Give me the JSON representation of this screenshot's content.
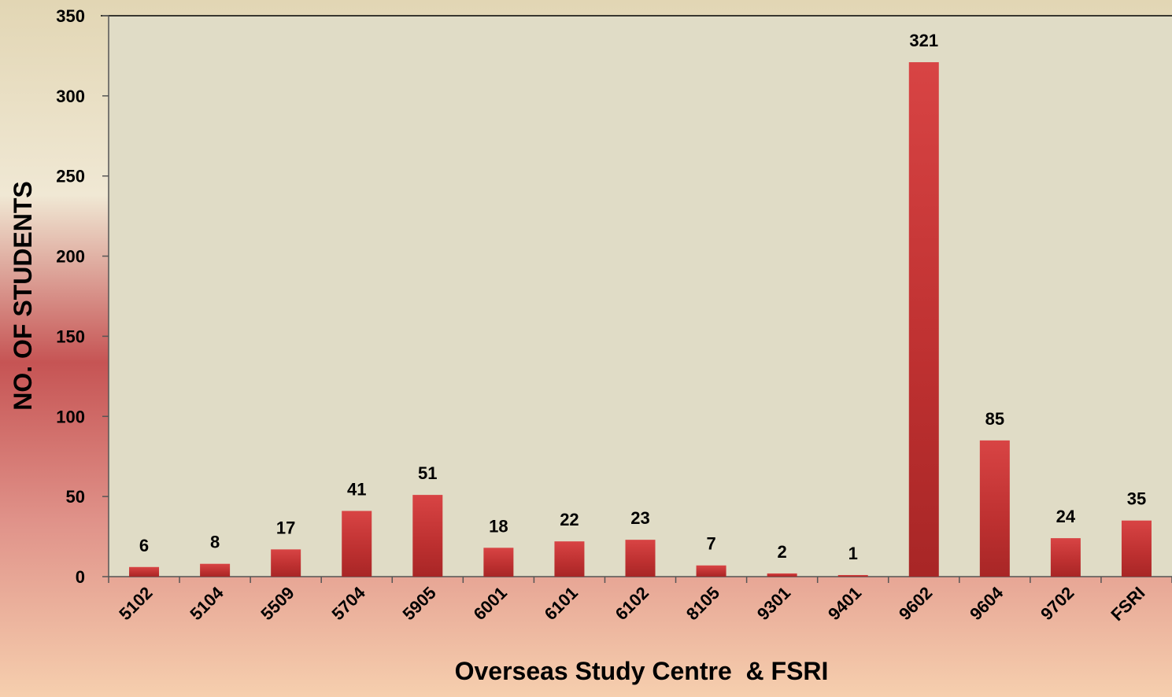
{
  "chart_data": {
    "type": "bar",
    "x_label": "Overseas Study Centre  & FSRI",
    "y_label": "NO. OF STUDENTS",
    "categories": [
      "5102",
      "5104",
      "5509",
      "5704",
      "5905",
      "6001",
      "6101",
      "6102",
      "8105",
      "9301",
      "9401",
      "9602",
      "9604",
      "9702",
      "FSRI"
    ],
    "values": [
      6,
      8,
      17,
      41,
      51,
      18,
      22,
      23,
      7,
      2,
      1,
      321,
      85,
      24,
      35
    ],
    "color": "#c83434",
    "ylim": [
      0,
      350
    ],
    "yticks": [
      0,
      50,
      100,
      150,
      200,
      250,
      300,
      350
    ],
    "grid": false
  }
}
